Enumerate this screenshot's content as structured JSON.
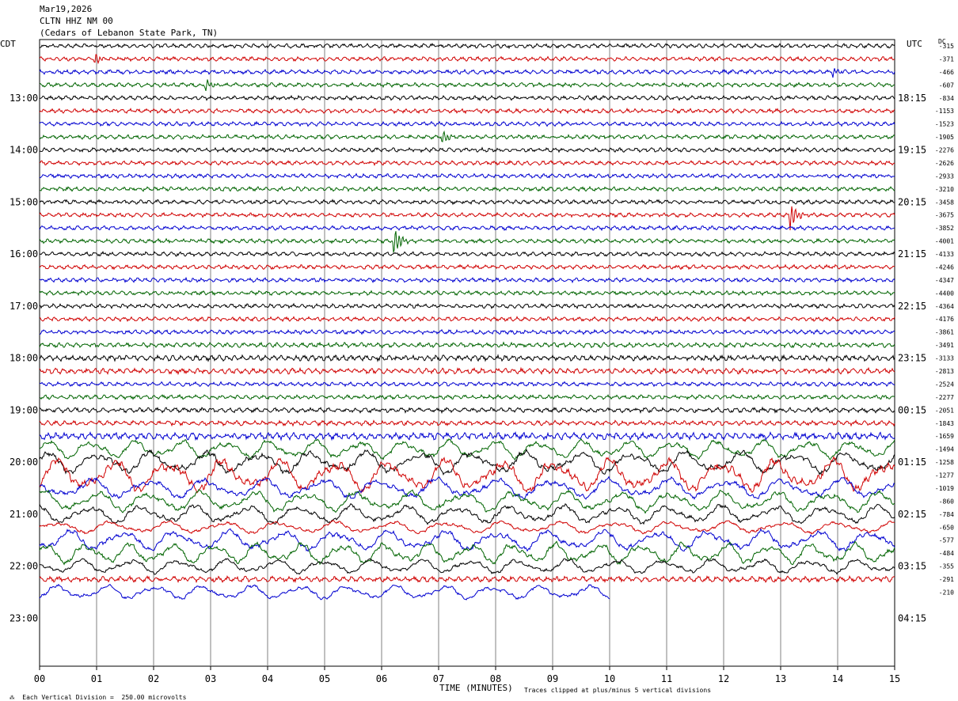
{
  "header": {
    "date": "Mar19,2026",
    "station": "CLTN HHZ NM 00",
    "location": "(Cedars of Lebanon State Park, TN)"
  },
  "left_zone": "CDT",
  "right_zone": "UTC",
  "dc_label": "DC",
  "footer": {
    "scale_note": "Each Vertical Division =  250.00 microvolts",
    "clip_note": "Traces clipped at plus/minus 5 vertical divisions"
  },
  "colors": {
    "black": "#000000",
    "red": "#d00000",
    "blue": "#0000d0",
    "green": "#006400"
  },
  "chart_data": {
    "type": "line",
    "xlabel": "TIME (MINUTES)",
    "x_ticks": [
      "00",
      "01",
      "02",
      "03",
      "04",
      "05",
      "06",
      "07",
      "08",
      "09",
      "10",
      "11",
      "12",
      "13",
      "14",
      "15"
    ],
    "xlim": [
      0,
      15
    ],
    "left_hour_labels": [
      "13:00",
      "14:00",
      "15:00",
      "16:00",
      "17:00",
      "18:00",
      "19:00",
      "20:00",
      "21:00",
      "22:00",
      "23:00"
    ],
    "right_hour_labels": [
      "18:15",
      "19:15",
      "20:15",
      "21:15",
      "22:15",
      "23:15",
      "00:15",
      "01:15",
      "02:15",
      "03:15",
      "04:15"
    ],
    "trace_dc_offsets": [
      "-315",
      "-371",
      "-466",
      "-607",
      "-834",
      "-1153",
      "-1523",
      "-1905",
      "-2276",
      "-2626",
      "-2933",
      "-3210",
      "-3458",
      "-3675",
      "-3852",
      "-4001",
      "-4133",
      "-4246",
      "-4347",
      "-4400",
      "-4364",
      "-4176",
      "-3861",
      "-3491",
      "-3133",
      "-2813",
      "-2524",
      "-2277",
      "-2051",
      "-1843",
      "-1659",
      "-1494",
      "-1258",
      "-1277",
      "-1019",
      "-860",
      "-784",
      "-650",
      "-577",
      "-484",
      "-355",
      "-291",
      "-210"
    ],
    "trace_amplitudes": [
      3,
      3,
      3,
      3,
      3,
      3,
      3,
      3,
      3,
      3,
      3,
      3,
      3,
      3,
      3,
      3,
      3,
      3,
      3,
      3,
      3,
      3,
      3,
      3.5,
      4,
      4,
      3,
      3,
      3.5,
      3.5,
      5,
      9,
      11,
      16,
      10,
      10,
      9,
      6,
      10,
      10,
      7,
      4,
      7
    ],
    "series_colors": [
      "black",
      "red",
      "blue",
      "green"
    ],
    "last_trace_end_minute": 10,
    "events": [
      {
        "trace": 1,
        "minute": 0.95,
        "amp": 8
      },
      {
        "trace": 2,
        "minute": 13.9,
        "amp": 6
      },
      {
        "trace": 3,
        "minute": 2.9,
        "amp": 8
      },
      {
        "trace": 7,
        "minute": 7.05,
        "amp": 10
      },
      {
        "trace": 13,
        "minute": 13.15,
        "amp": 22
      },
      {
        "trace": 15,
        "minute": 6.2,
        "amp": 22
      }
    ],
    "grid": true
  }
}
